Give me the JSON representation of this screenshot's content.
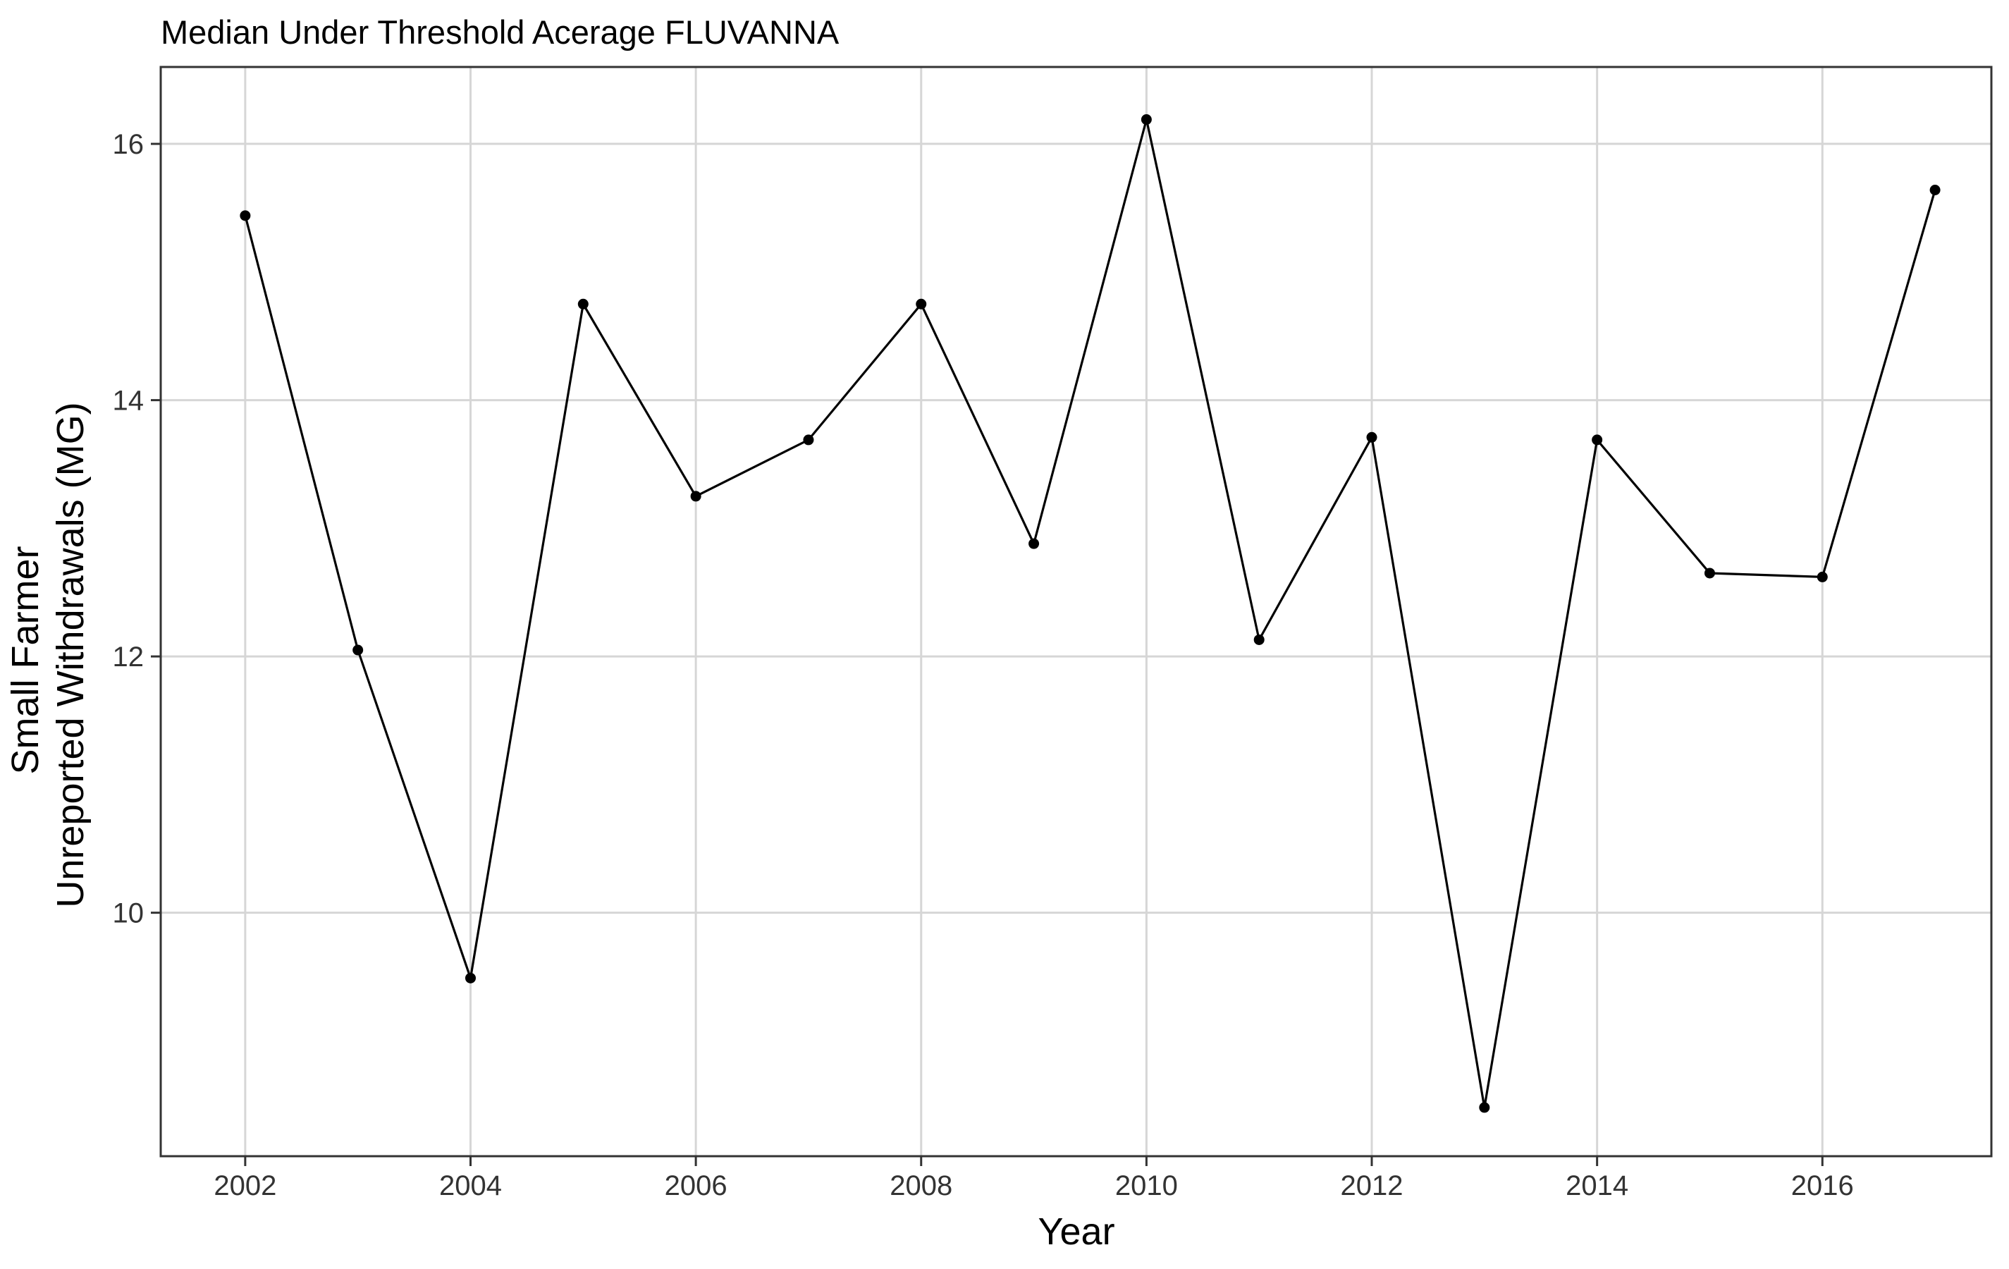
{
  "chart_data": {
    "type": "line",
    "title": "Median Under Threshold Acerage FLUVANNA",
    "xlabel": "Year",
    "ylabel_lines": [
      "Small Farmer",
      "Unreported Withdrawals (MG)"
    ],
    "xlim": [
      2001.25,
      2017.5
    ],
    "ylim": [
      8.1,
      16.6
    ],
    "x_ticks": [
      2002,
      2004,
      2006,
      2008,
      2010,
      2012,
      2014,
      2016
    ],
    "x_tick_labels": [
      "2002",
      "2004",
      "2006",
      "2008",
      "2010",
      "2012",
      "2014",
      "2016"
    ],
    "y_ticks": [
      10,
      12,
      14,
      16
    ],
    "y_tick_labels": [
      "10",
      "12",
      "14",
      "16"
    ],
    "grid": true,
    "legend": "none",
    "series": [
      {
        "x": [
          2002,
          2003,
          2004,
          2005,
          2006,
          2007,
          2008,
          2009,
          2010,
          2011,
          2012,
          2013,
          2014,
          2015,
          2016,
          2017
        ],
        "y": [
          15.44,
          12.05,
          9.49,
          14.75,
          13.25,
          13.69,
          14.75,
          12.88,
          16.19,
          12.13,
          13.71,
          8.48,
          13.69,
          12.65,
          12.62,
          15.64
        ],
        "color": "#000000"
      }
    ]
  }
}
